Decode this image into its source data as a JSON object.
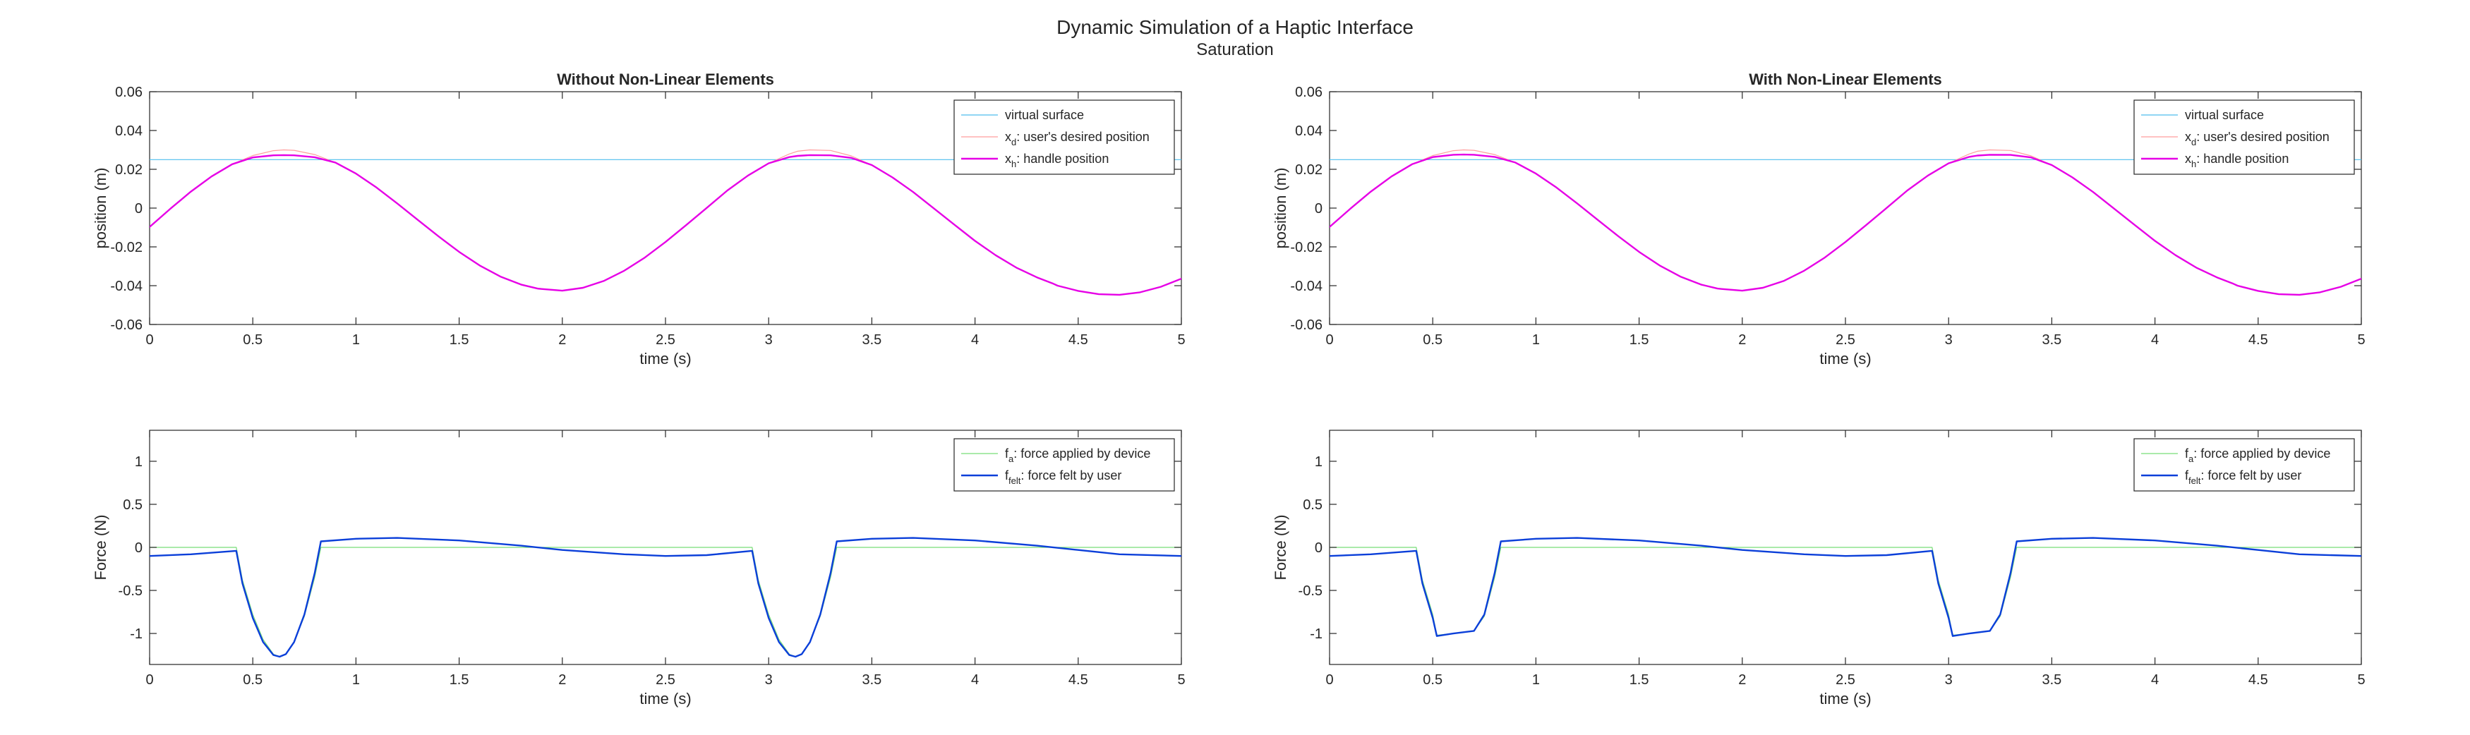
{
  "figure": {
    "title": "Dynamic Simulation of a Haptic Interface",
    "subtitle": "Saturation"
  },
  "chart_data": [
    {
      "type": "line",
      "title": "Without Non-Linear Elements",
      "xlabel": "time (s)",
      "ylabel": "position (m)",
      "xlim": [
        0,
        5
      ],
      "ylim": [
        -0.06,
        0.06
      ],
      "xticks": [
        0,
        0.5,
        1,
        1.5,
        2,
        2.5,
        3,
        3.5,
        4,
        4.5,
        5
      ],
      "xtick_labels": [
        "0",
        "0.5",
        "1",
        "1.5",
        "2",
        "2.5",
        "3",
        "3.5",
        "4",
        "4.5",
        "5"
      ],
      "yticks": [
        -0.06,
        -0.04,
        -0.02,
        0,
        0.02,
        0.04,
        0.06
      ],
      "ytick_labels": [
        "-0.06",
        "-0.04",
        "-0.02",
        "0",
        "0.02",
        "0.04",
        "0.06"
      ],
      "grid": false,
      "legend_position": "top-right",
      "series": [
        {
          "name": "virtual surface",
          "sub": "",
          "name_rest": "",
          "color": "#4DBEEE",
          "line_width": 1.2,
          "x": [
            0,
            5
          ],
          "y": [
            0.025,
            0.025
          ]
        },
        {
          "name": "x",
          "sub": "d",
          "name_rest": ": user's desired position",
          "color": "#FF9D9D",
          "line_width": 1.2,
          "x": [
            0,
            0.1,
            0.2,
            0.3,
            0.4,
            0.5,
            0.6,
            0.65,
            0.7,
            0.8,
            0.9,
            1.0,
            1.1,
            1.2,
            1.3,
            1.4,
            1.5,
            1.6,
            1.7,
            1.8,
            1.88,
            1.9,
            2.0,
            2.1,
            2.2,
            2.3,
            2.4,
            2.5,
            2.6,
            2.7,
            2.8,
            2.9,
            3.0,
            3.1,
            3.14,
            3.2,
            3.3,
            3.4,
            3.5,
            3.6,
            3.7,
            3.8,
            3.9,
            4.0,
            4.1,
            4.2,
            4.3,
            4.38,
            4.4,
            4.5,
            4.6,
            4.7,
            4.8,
            4.9,
            5.0
          ],
          "y": [
            -0.0097,
            -0.0004,
            0.0085,
            0.0163,
            0.0226,
            0.0271,
            0.0296,
            0.03,
            0.0298,
            0.0276,
            0.0235,
            0.0178,
            0.0106,
            0.0024,
            -0.0061,
            -0.0146,
            -0.0226,
            -0.0296,
            -0.0353,
            -0.0394,
            -0.0415,
            -0.0417,
            -0.0426,
            -0.0411,
            -0.0376,
            -0.0323,
            -0.0255,
            -0.0175,
            -0.0088,
            0.0001,
            0.0091,
            0.0168,
            0.0231,
            0.0279,
            0.0293,
            0.03,
            0.0297,
            0.0269,
            0.0222,
            0.0158,
            0.0083,
            -0.0001,
            -0.0086,
            -0.0169,
            -0.0243,
            -0.0307,
            -0.0357,
            -0.039,
            -0.04,
            -0.0427,
            -0.0444,
            -0.0447,
            -0.0434,
            -0.0406,
            -0.0364
          ]
        },
        {
          "name": "x",
          "sub": "h",
          "name_rest": ": handle position",
          "color": "#E600E6",
          "line_width": 2.4,
          "x": [
            0,
            0.1,
            0.2,
            0.3,
            0.4,
            0.5,
            0.6,
            0.65,
            0.7,
            0.8,
            0.9,
            1.0,
            1.1,
            1.2,
            1.3,
            1.4,
            1.5,
            1.6,
            1.7,
            1.8,
            1.88,
            1.9,
            2.0,
            2.1,
            2.2,
            2.3,
            2.4,
            2.5,
            2.6,
            2.7,
            2.8,
            2.9,
            3.0,
            3.1,
            3.14,
            3.2,
            3.3,
            3.4,
            3.5,
            3.6,
            3.7,
            3.8,
            3.9,
            4.0,
            4.1,
            4.2,
            4.3,
            4.38,
            4.4,
            4.5,
            4.6,
            4.7,
            4.8,
            4.9,
            5.0
          ],
          "y": [
            -0.0097,
            -0.0004,
            0.0085,
            0.0163,
            0.0226,
            0.0261,
            0.0272,
            0.0273,
            0.0272,
            0.0262,
            0.0235,
            0.0178,
            0.0106,
            0.0024,
            -0.0061,
            -0.0146,
            -0.0226,
            -0.0296,
            -0.0353,
            -0.0394,
            -0.0415,
            -0.0417,
            -0.0426,
            -0.0411,
            -0.0376,
            -0.0323,
            -0.0255,
            -0.0175,
            -0.0088,
            0.0001,
            0.0091,
            0.0168,
            0.0231,
            0.0263,
            0.0269,
            0.0273,
            0.0272,
            0.0259,
            0.0222,
            0.0158,
            0.0083,
            -0.0001,
            -0.0086,
            -0.0169,
            -0.0243,
            -0.0307,
            -0.0357,
            -0.039,
            -0.04,
            -0.0427,
            -0.0444,
            -0.0447,
            -0.0434,
            -0.0406,
            -0.0364
          ]
        }
      ]
    },
    {
      "type": "line",
      "title": "With Non-Linear Elements",
      "xlabel": "time (s)",
      "ylabel": "position (m)",
      "xlim": [
        0,
        5
      ],
      "ylim": [
        -0.06,
        0.06
      ],
      "xticks": [
        0,
        0.5,
        1,
        1.5,
        2,
        2.5,
        3,
        3.5,
        4,
        4.5,
        5
      ],
      "xtick_labels": [
        "0",
        "0.5",
        "1",
        "1.5",
        "2",
        "2.5",
        "3",
        "3.5",
        "4",
        "4.5",
        "5"
      ],
      "yticks": [
        -0.06,
        -0.04,
        -0.02,
        0,
        0.02,
        0.04,
        0.06
      ],
      "ytick_labels": [
        "-0.06",
        "-0.04",
        "-0.02",
        "0",
        "0.02",
        "0.04",
        "0.06"
      ],
      "grid": false,
      "legend_position": "top-right",
      "series": [
        {
          "name": "virtual surface",
          "sub": "",
          "name_rest": "",
          "color": "#4DBEEE",
          "line_width": 1.2,
          "x": [
            0,
            5
          ],
          "y": [
            0.025,
            0.025
          ]
        },
        {
          "name": "x",
          "sub": "d",
          "name_rest": ": user's desired position",
          "color": "#FF9D9D",
          "line_width": 1.2,
          "x": [
            0,
            0.1,
            0.2,
            0.3,
            0.4,
            0.5,
            0.6,
            0.65,
            0.7,
            0.8,
            0.9,
            1.0,
            1.1,
            1.2,
            1.3,
            1.4,
            1.5,
            1.6,
            1.7,
            1.8,
            1.88,
            1.9,
            2.0,
            2.1,
            2.2,
            2.3,
            2.4,
            2.5,
            2.6,
            2.7,
            2.8,
            2.9,
            3.0,
            3.1,
            3.14,
            3.2,
            3.3,
            3.4,
            3.5,
            3.6,
            3.7,
            3.8,
            3.9,
            4.0,
            4.1,
            4.2,
            4.3,
            4.38,
            4.4,
            4.5,
            4.6,
            4.7,
            4.8,
            4.9,
            5.0
          ],
          "y": [
            -0.0097,
            -0.0004,
            0.0085,
            0.0163,
            0.0226,
            0.0271,
            0.0296,
            0.03,
            0.0298,
            0.0276,
            0.0235,
            0.0178,
            0.0106,
            0.0024,
            -0.0061,
            -0.0146,
            -0.0226,
            -0.0296,
            -0.0353,
            -0.0394,
            -0.0415,
            -0.0417,
            -0.0426,
            -0.0411,
            -0.0376,
            -0.0323,
            -0.0255,
            -0.0175,
            -0.0088,
            0.0001,
            0.0091,
            0.0168,
            0.0231,
            0.0279,
            0.0293,
            0.03,
            0.0297,
            0.0269,
            0.0222,
            0.0158,
            0.0083,
            -0.0001,
            -0.0086,
            -0.0169,
            -0.0243,
            -0.0307,
            -0.0357,
            -0.039,
            -0.04,
            -0.0427,
            -0.0444,
            -0.0447,
            -0.0434,
            -0.0406,
            -0.0364
          ]
        },
        {
          "name": "x",
          "sub": "h",
          "name_rest": ": handle position",
          "color": "#E600E6",
          "line_width": 2.4,
          "x": [
            0,
            0.1,
            0.2,
            0.3,
            0.4,
            0.5,
            0.6,
            0.65,
            0.7,
            0.8,
            0.9,
            1.0,
            1.1,
            1.2,
            1.3,
            1.4,
            1.5,
            1.6,
            1.7,
            1.8,
            1.88,
            1.9,
            2.0,
            2.1,
            2.2,
            2.3,
            2.4,
            2.5,
            2.6,
            2.7,
            2.8,
            2.9,
            3.0,
            3.1,
            3.14,
            3.2,
            3.3,
            3.4,
            3.5,
            3.6,
            3.7,
            3.8,
            3.9,
            4.0,
            4.1,
            4.2,
            4.3,
            4.38,
            4.4,
            4.5,
            4.6,
            4.7,
            4.8,
            4.9,
            5.0
          ],
          "y": [
            -0.0097,
            -0.0004,
            0.0085,
            0.0163,
            0.0226,
            0.0263,
            0.0275,
            0.0276,
            0.0275,
            0.0264,
            0.0235,
            0.0178,
            0.0106,
            0.0024,
            -0.0061,
            -0.0146,
            -0.0226,
            -0.0296,
            -0.0353,
            -0.0394,
            -0.0415,
            -0.0417,
            -0.0426,
            -0.0411,
            -0.0376,
            -0.0323,
            -0.0255,
            -0.0175,
            -0.0088,
            0.0001,
            0.0091,
            0.0168,
            0.0231,
            0.0264,
            0.0271,
            0.0275,
            0.0274,
            0.0261,
            0.0222,
            0.0158,
            0.0083,
            -0.0001,
            -0.0086,
            -0.0169,
            -0.0243,
            -0.0307,
            -0.0357,
            -0.039,
            -0.04,
            -0.0427,
            -0.0444,
            -0.0447,
            -0.0434,
            -0.0406,
            -0.0364
          ]
        }
      ]
    },
    {
      "type": "line",
      "title": "",
      "xlabel": "time (s)",
      "ylabel": "Force (N)",
      "xlim": [
        0,
        5
      ],
      "ylim": [
        -1.36,
        1.36
      ],
      "xticks": [
        0,
        0.5,
        1,
        1.5,
        2,
        2.5,
        3,
        3.5,
        4,
        4.5,
        5
      ],
      "xtick_labels": [
        "0",
        "0.5",
        "1",
        "1.5",
        "2",
        "2.5",
        "3",
        "3.5",
        "4",
        "4.5",
        "5"
      ],
      "yticks": [
        -1,
        -0.5,
        0,
        0.5,
        1
      ],
      "ytick_labels": [
        "-1",
        "-0.5",
        "0",
        "0.5",
        "1"
      ],
      "grid": false,
      "legend_position": "top-right",
      "series": [
        {
          "name": "f",
          "sub": "a",
          "name_rest": ": force applied by device",
          "color": "#77DD77",
          "line_width": 1.2,
          "x": [
            0,
            0.42,
            0.45,
            0.5,
            0.55,
            0.6,
            0.63,
            0.66,
            0.7,
            0.75,
            0.8,
            0.83,
            1.0,
            1.5,
            2.0,
            2.5,
            2.92,
            2.95,
            3.0,
            3.05,
            3.1,
            3.13,
            3.16,
            3.2,
            3.25,
            3.3,
            3.33,
            3.5,
            4.0,
            4.5,
            5.0
          ],
          "y": [
            0,
            0,
            -0.38,
            -0.78,
            -1.07,
            -1.24,
            -1.27,
            -1.24,
            -1.1,
            -0.8,
            -0.35,
            0,
            0,
            0,
            0,
            0,
            0,
            -0.38,
            -0.78,
            -1.07,
            -1.24,
            -1.27,
            -1.24,
            -1.1,
            -0.8,
            -0.35,
            0,
            0,
            0,
            0,
            0
          ]
        },
        {
          "name": "f",
          "sub": "felt",
          "name_rest": ": force felt by user",
          "color": "#0B3FD9",
          "line_width": 2.4,
          "x": [
            0,
            0.2,
            0.42,
            0.45,
            0.5,
            0.55,
            0.6,
            0.63,
            0.66,
            0.7,
            0.75,
            0.8,
            0.83,
            1.0,
            1.2,
            1.5,
            1.8,
            2.0,
            2.3,
            2.5,
            2.7,
            2.92,
            2.95,
            3.0,
            3.05,
            3.1,
            3.13,
            3.16,
            3.2,
            3.25,
            3.3,
            3.33,
            3.5,
            3.7,
            4.0,
            4.3,
            4.5,
            4.7,
            5.0
          ],
          "y": [
            -0.1,
            -0.08,
            -0.04,
            -0.42,
            -0.82,
            -1.1,
            -1.25,
            -1.27,
            -1.24,
            -1.1,
            -0.78,
            -0.3,
            0.07,
            0.1,
            0.11,
            0.08,
            0.02,
            -0.03,
            -0.08,
            -0.1,
            -0.09,
            -0.04,
            -0.42,
            -0.82,
            -1.1,
            -1.25,
            -1.27,
            -1.24,
            -1.1,
            -0.78,
            -0.3,
            0.07,
            0.1,
            0.11,
            0.08,
            0.02,
            -0.03,
            -0.08,
            -0.1
          ]
        }
      ]
    },
    {
      "type": "line",
      "title": "",
      "xlabel": "time (s)",
      "ylabel": "Force (N)",
      "xlim": [
        0,
        5
      ],
      "ylim": [
        -1.36,
        1.36
      ],
      "xticks": [
        0,
        0.5,
        1,
        1.5,
        2,
        2.5,
        3,
        3.5,
        4,
        4.5,
        5
      ],
      "xtick_labels": [
        "0",
        "0.5",
        "1",
        "1.5",
        "2",
        "2.5",
        "3",
        "3.5",
        "4",
        "4.5",
        "5"
      ],
      "yticks": [
        -1,
        -0.5,
        0,
        0.5,
        1
      ],
      "ytick_labels": [
        "-1",
        "-0.5",
        "0",
        "0.5",
        "1"
      ],
      "grid": false,
      "legend_position": "top-right",
      "series": [
        {
          "name": "f",
          "sub": "a",
          "name_rest": ": force applied by device",
          "color": "#77DD77",
          "line_width": 1.2,
          "x": [
            0,
            0.42,
            0.45,
            0.5,
            0.52,
            0.6,
            0.7,
            0.75,
            0.8,
            0.83,
            1.0,
            1.5,
            2.0,
            2.5,
            2.92,
            2.95,
            3.0,
            3.02,
            3.1,
            3.2,
            3.25,
            3.3,
            3.33,
            3.5,
            4.0,
            4.5,
            5.0
          ],
          "y": [
            0,
            0,
            -0.38,
            -0.78,
            -1.02,
            -1.0,
            -0.97,
            -0.8,
            -0.35,
            0,
            0,
            0,
            0,
            0,
            0,
            -0.38,
            -0.78,
            -1.02,
            -1.0,
            -0.97,
            -0.8,
            -0.35,
            0,
            0,
            0,
            0,
            0
          ]
        },
        {
          "name": "f",
          "sub": "felt",
          "name_rest": ": force felt by user",
          "color": "#0B3FD9",
          "line_width": 2.4,
          "x": [
            0,
            0.2,
            0.42,
            0.45,
            0.5,
            0.52,
            0.6,
            0.7,
            0.75,
            0.8,
            0.83,
            1.0,
            1.2,
            1.5,
            1.8,
            2.0,
            2.3,
            2.5,
            2.7,
            2.92,
            2.95,
            3.0,
            3.02,
            3.1,
            3.2,
            3.25,
            3.3,
            3.33,
            3.5,
            3.7,
            4.0,
            4.3,
            4.5,
            4.7,
            5.0
          ],
          "y": [
            -0.1,
            -0.08,
            -0.04,
            -0.42,
            -0.82,
            -1.03,
            -1.0,
            -0.97,
            -0.78,
            -0.3,
            0.07,
            0.1,
            0.11,
            0.08,
            0.02,
            -0.03,
            -0.08,
            -0.1,
            -0.09,
            -0.04,
            -0.42,
            -0.82,
            -1.03,
            -1.0,
            -0.97,
            -0.78,
            -0.3,
            0.07,
            0.1,
            0.11,
            0.08,
            0.02,
            -0.03,
            -0.08,
            -0.1
          ]
        }
      ]
    }
  ]
}
